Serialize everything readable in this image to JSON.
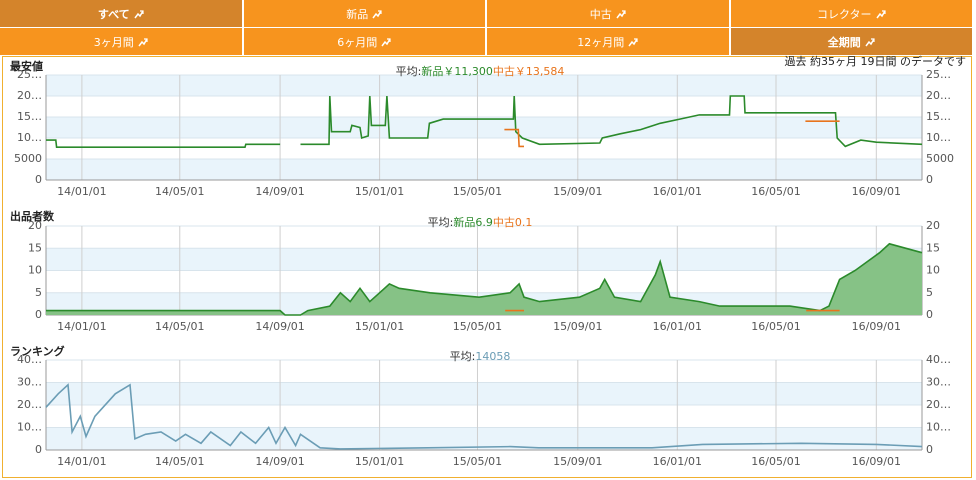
{
  "tabs": {
    "rows": [
      [
        {
          "label": "すべて",
          "active": true
        },
        {
          "label": "新品",
          "active": false
        },
        {
          "label": "中古",
          "active": false
        },
        {
          "label": "コレクター",
          "active": false
        }
      ],
      [
        {
          "label": "3ヶ月間",
          "active": false
        },
        {
          "label": "6ヶ月間",
          "active": false
        },
        {
          "label": "12ヶ月間",
          "active": false
        },
        {
          "label": "全期間",
          "active": true
        }
      ]
    ]
  },
  "period_note": "過去 約35ヶ月 19日間 のデータです",
  "chart_data": [
    {
      "type": "line",
      "title": "最安値",
      "average_prefix": "平均:",
      "xlim": [
        "13/11/18",
        "16/10/27"
      ],
      "xticks": [
        "14/01/01",
        "14/05/01",
        "14/09/01",
        "15/01/01",
        "15/05/01",
        "15/09/01",
        "16/01/01",
        "16/05/01",
        "16/09/01"
      ],
      "ylim": [
        0,
        25000
      ],
      "yticks": [
        0,
        5000,
        {
          "value": 10000,
          "label": "10…"
        },
        {
          "value": 15000,
          "label": "15…"
        },
        {
          "value": 20000,
          "label": "20…"
        },
        {
          "value": 25000,
          "label": "25…"
        }
      ],
      "grid": true,
      "series": [
        {
          "name": "新品",
          "color": "#2b8a2b",
          "average": 11300,
          "average_label": "￥11,300",
          "x": [
            "13/11/18",
            "13/11/30",
            "13/12/01",
            "14/07/20",
            "14/07/21",
            "14/09/01",
            "14/09/10",
            "14/09/26",
            "14/10/31",
            "14/11/01",
            "14/11/03",
            "14/11/26",
            "14/11/28",
            "14/12/08",
            "14/12/10",
            "14/12/18",
            "14/12/20",
            "14/12/22",
            "15/01/08",
            "15/01/10",
            "15/01/13",
            "15/03/01",
            "15/03/03",
            "15/03/20",
            "15/06/14",
            "15/06/15",
            "15/06/17",
            "15/06/25",
            "15/07/16",
            "15/09/28",
            "15/10/01",
            "15/10/23",
            "15/11/17",
            "15/12/11",
            "16/01/04",
            "16/01/28",
            "16/03/05",
            "16/03/06",
            "16/03/23",
            "16/03/24",
            "16/07/13",
            "16/07/15",
            "16/07/25",
            "16/08/13",
            "16/09/01",
            "16/10/27"
          ],
          "values": [
            9500,
            9500,
            7800,
            7800,
            8500,
            8500,
            null,
            8500,
            8500,
            20000,
            11500,
            11500,
            13000,
            12500,
            10000,
            10500,
            20000,
            13000,
            13000,
            20000,
            10000,
            10000,
            13500,
            14500,
            14500,
            20000,
            11500,
            10000,
            8500,
            8800,
            10000,
            11000,
            12000,
            13500,
            14500,
            15500,
            15500,
            20000,
            20000,
            16000,
            16000,
            10000,
            8000,
            9500,
            9000,
            8500
          ]
        },
        {
          "name": "中古",
          "color": "#e8741c",
          "average": 13584,
          "average_label": "￥13,584",
          "x": [
            "15/06/03",
            "15/06/20",
            "15/06/21",
            "15/06/27",
            "15/06/28",
            "16/06/06",
            "16/07/18"
          ],
          "values": [
            12000,
            12000,
            8000,
            8000,
            null,
            14000,
            14000
          ]
        }
      ]
    },
    {
      "type": "area",
      "title": "出品者数",
      "average_prefix": "平均:",
      "xlim": [
        "13/11/18",
        "16/10/27"
      ],
      "xticks": [
        "14/01/01",
        "14/05/01",
        "14/09/01",
        "15/01/01",
        "15/05/01",
        "15/09/01",
        "16/01/01",
        "16/05/01",
        "16/09/01"
      ],
      "ylim": [
        0,
        20
      ],
      "yticks": [
        0,
        5,
        10,
        15,
        20
      ],
      "grid": true,
      "series": [
        {
          "name": "新品",
          "color": "#2b8a2b",
          "fill": "#86c286",
          "average": 6.9,
          "x": [
            "13/11/18",
            "14/09/01",
            "14/09/07",
            "14/09/26",
            "14/10/05",
            "14/11/01",
            "14/11/14",
            "14/11/26",
            "14/12/08",
            "14/12/20",
            "15/01/01",
            "15/01/13",
            "15/01/25",
            "15/03/04",
            "15/05/03",
            "15/06/10",
            "15/06/21",
            "15/06/27",
            "15/07/16",
            "15/09/03",
            "15/09/28",
            "15/10/04",
            "15/10/16",
            "15/11/17",
            "15/12/05",
            "15/12/11",
            "15/12/23",
            "16/01/28",
            "16/02/22",
            "16/05/18",
            "16/06/24",
            "16/07/05",
            "16/07/18",
            "16/08/06",
            "16/09/05",
            "16/09/17",
            "16/10/27"
          ],
          "values": [
            1,
            1,
            0,
            0,
            1,
            2,
            5,
            3,
            6,
            3,
            5,
            7,
            6,
            5,
            4,
            5,
            7,
            4,
            3,
            4,
            6,
            8,
            4,
            3,
            9,
            12,
            4,
            3,
            2,
            2,
            1,
            2,
            8,
            10,
            14,
            16,
            14
          ]
        },
        {
          "name": "中古",
          "color": "#e8741c",
          "average": 0.1,
          "x": [
            "15/06/04",
            "15/06/27",
            "15/07/01",
            "16/06/07",
            "16/07/18"
          ],
          "values": [
            1,
            1,
            null,
            1,
            1
          ]
        }
      ]
    },
    {
      "type": "line",
      "title": "ランキング",
      "average_prefix": "平均:",
      "xlim": [
        "13/11/18",
        "16/10/27"
      ],
      "xticks": [
        "14/01/01",
        "14/05/01",
        "14/09/01",
        "15/01/01",
        "15/05/01",
        "15/09/01",
        "16/01/01",
        "16/05/01",
        "16/09/01"
      ],
      "ylim": [
        0,
        40000
      ],
      "yticks": [
        0,
        {
          "value": 10000,
          "label": "10…"
        },
        {
          "value": 20000,
          "label": "20…"
        },
        {
          "value": 30000,
          "label": "30…"
        },
        {
          "value": 40000,
          "label": "40…"
        }
      ],
      "grid": true,
      "series": [
        {
          "color": "#6b9db5",
          "average": 14058,
          "x": [
            "13/11/18",
            "13/12/03",
            "13/12/15",
            "13/12/20",
            "13/12/30",
            "14/01/06",
            "14/01/17",
            "14/02/11",
            "14/03/01",
            "14/03/07",
            "14/03/20",
            "14/04/08",
            "14/04/26",
            "14/05/08",
            "14/05/27",
            "14/06/08",
            "14/07/02",
            "14/07/15",
            "14/08/02",
            "14/08/18",
            "14/08/27",
            "14/09/07",
            "14/09/20",
            "14/09/26",
            "14/10/20",
            "14/11/14",
            "15/03/01",
            "15/06/10",
            "15/07/15",
            "15/12/01",
            "16/02/01",
            "16/06/01",
            "16/09/01",
            "16/10/27"
          ],
          "values": [
            19000,
            25000,
            29000,
            8000,
            15000,
            6000,
            15000,
            25000,
            29000,
            5000,
            7000,
            8000,
            4000,
            7000,
            3000,
            8000,
            2000,
            8000,
            3000,
            10000,
            3000,
            10000,
            2000,
            7000,
            1000,
            500,
            1000,
            1500,
            1000,
            1000,
            2500,
            3000,
            2500,
            1500
          ]
        }
      ]
    }
  ]
}
